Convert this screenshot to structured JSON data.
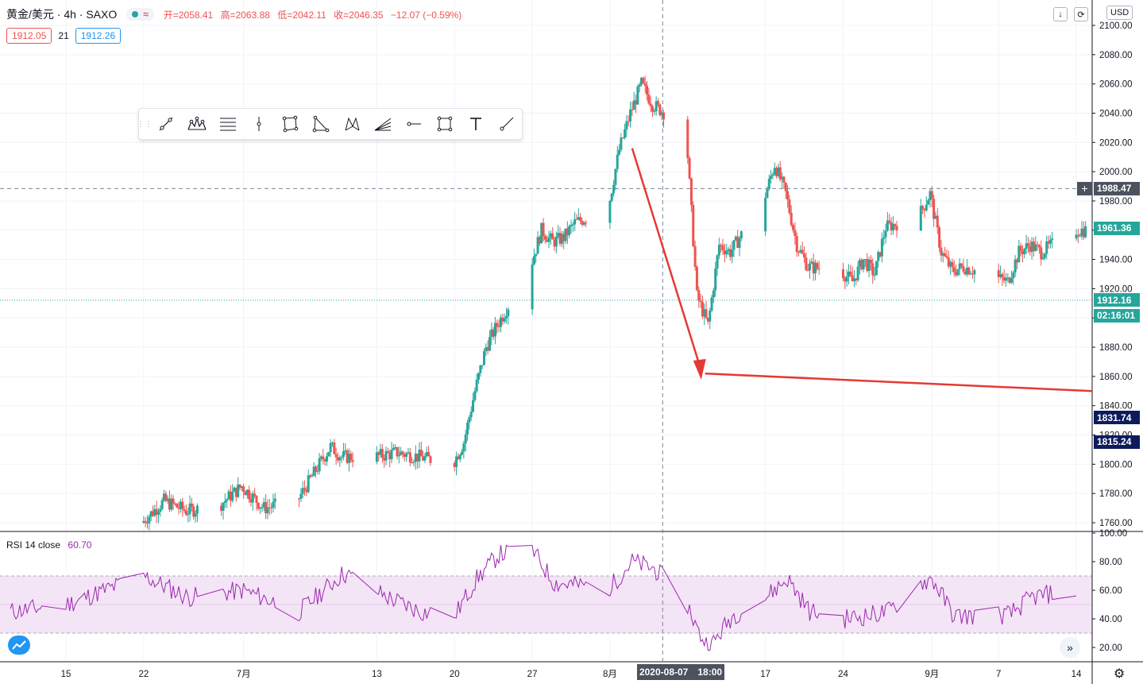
{
  "header": {
    "symbol": "黄金/美元",
    "interval": "4h",
    "exchange": "SAXO",
    "title_text": "黄金/美元 · 4h · SAXO",
    "approx_symbol": "≈",
    "open_label": "开=2058.41",
    "high_label": "高=2063.88",
    "low_label": "低=2042.11",
    "close_label": "收=2046.35",
    "change_label": "−12.07 (−0.59%)",
    "bid_value": "1912.05",
    "spread_value": "21",
    "ask_value": "1912.26"
  },
  "currency_label": "USD",
  "rsi_legend": {
    "label": "RSI 14 close",
    "value": "60.70"
  },
  "crosshair_time": {
    "date": "2020-08-07",
    "time": "18:00"
  },
  "price_tags": {
    "crosshair": "1988.47",
    "last_price": "1961.36",
    "bid_line": "1912.16",
    "countdown": "02:16:01",
    "tag_blue_1": "1831.74",
    "tag_blue_2": "1815.24"
  },
  "colors": {
    "up": "#26a69a",
    "down": "#ef5350",
    "rsi_line": "#9c27b0",
    "rsi_band": "#f3e5f5",
    "annotation": "#e53935",
    "dark_tag": "#131722",
    "navy_tag": "#0d1b5c",
    "teal_tag": "#26a69a"
  },
  "drawing_tools": [
    "trend-line-icon",
    "pattern-icon",
    "fib-retracement-icon",
    "vertical-line-icon",
    "polygon-icon",
    "triangle-icon",
    "xabcd-icon",
    "fib-fan-icon",
    "horizontal-ray-icon",
    "rectangle-icon",
    "text-icon",
    "ray-icon"
  ],
  "chart_data": [
    {
      "type": "candlestick",
      "title": "黄金/美元 · 4h · SAXO",
      "ylabel": "USD",
      "ylim": [
        1750,
        2105
      ],
      "y_ticks": [
        "1760.00",
        "1780.00",
        "1800.00",
        "1820.00",
        "1840.00",
        "1860.00",
        "1880.00",
        "1900.00",
        "1920.00",
        "1940.00",
        "1960.00",
        "1980.00",
        "2000.00",
        "2020.00",
        "2040.00",
        "2060.00",
        "2080.00",
        "2100.00"
      ],
      "x_ticks": [
        "15",
        "22",
        "7月",
        "13",
        "20",
        "27",
        "8月",
        "17",
        "24",
        "9月",
        "7",
        "14"
      ],
      "key_levels": {
        "crosshair_price": 1988.47,
        "last_price": 1961.36,
        "bid_line": 1912.16
      },
      "series": [
        {
          "points_date_close": [
            [
              "2020-06-22",
              1760
            ],
            [
              "2020-06-24",
              1775
            ],
            [
              "2020-06-26",
              1768
            ],
            [
              "2020-06-29",
              1772
            ],
            [
              "2020-07-01",
              1785
            ],
            [
              "2020-07-03",
              1770
            ],
            [
              "2020-07-06",
              1775
            ],
            [
              "2020-07-08",
              1800
            ],
            [
              "2020-07-09",
              1812
            ],
            [
              "2020-07-10",
              1805
            ],
            [
              "2020-07-13",
              1805
            ],
            [
              "2020-07-15",
              1808
            ],
            [
              "2020-07-17",
              1805
            ],
            [
              "2020-07-20",
              1800
            ],
            [
              "2020-07-21",
              1815
            ],
            [
              "2020-07-22",
              1850
            ],
            [
              "2020-07-23",
              1880
            ],
            [
              "2020-07-24",
              1895
            ],
            [
              "2020-07-27",
              1935
            ],
            [
              "2020-07-28",
              1960
            ],
            [
              "2020-07-29",
              1952
            ],
            [
              "2020-07-30",
              1955
            ],
            [
              "2020-07-31",
              1965
            ],
            [
              "2020-08-03",
              1975
            ],
            [
              "2020-08-04",
              2015
            ],
            [
              "2020-08-05",
              2040
            ],
            [
              "2020-08-06",
              2060
            ],
            [
              "2020-08-07",
              2046
            ],
            [
              "2020-08-10",
              2030
            ],
            [
              "2020-08-11",
              1915
            ],
            [
              "2020-08-12",
              1895
            ],
            [
              "2020-08-13",
              1950
            ],
            [
              "2020-08-14",
              1945
            ],
            [
              "2020-08-17",
              1980
            ],
            [
              "2020-08-18",
              2005
            ],
            [
              "2020-08-19",
              1985
            ],
            [
              "2020-08-20",
              1950
            ],
            [
              "2020-08-21",
              1935
            ],
            [
              "2020-08-24",
              1932
            ],
            [
              "2020-08-25",
              1925
            ],
            [
              "2020-08-26",
              1940
            ],
            [
              "2020-08-27",
              1930
            ],
            [
              "2020-08-28",
              1962
            ],
            [
              "2020-08-31",
              1970
            ],
            [
              "2020-09-01",
              1985
            ],
            [
              "2020-09-02",
              1945
            ],
            [
              "2020-09-03",
              1932
            ],
            [
              "2020-09-04",
              1935
            ],
            [
              "2020-09-08",
              1925
            ],
            [
              "2020-09-09",
              1945
            ],
            [
              "2020-09-10",
              1950
            ],
            [
              "2020-09-11",
              1945
            ],
            [
              "2020-09-14",
              1960
            ]
          ]
        }
      ]
    },
    {
      "type": "line",
      "title": "RSI 14 close",
      "ylim": [
        15,
        102
      ],
      "y_ticks": [
        "20.00",
        "40.00",
        "60.00",
        "80.00",
        "100.00"
      ],
      "bands": [
        30,
        70
      ],
      "series": [
        {
          "name": "RSI 14 close",
          "points_date_value": [
            [
              "2020-06-10",
              45
            ],
            [
              "2020-06-15",
              50
            ],
            [
              "2020-06-22",
              70
            ],
            [
              "2020-06-26",
              55
            ],
            [
              "2020-07-01",
              60
            ],
            [
              "2020-07-06",
              45
            ],
            [
              "2020-07-10",
              72
            ],
            [
              "2020-07-14",
              55
            ],
            [
              "2020-07-17",
              45
            ],
            [
              "2020-07-20",
              42
            ],
            [
              "2020-07-22",
              68
            ],
            [
              "2020-07-24",
              85
            ],
            [
              "2020-07-27",
              88
            ],
            [
              "2020-07-29",
              65
            ],
            [
              "2020-08-03",
              62
            ],
            [
              "2020-08-05",
              80
            ],
            [
              "2020-08-07",
              75
            ],
            [
              "2020-08-10",
              50
            ],
            [
              "2020-08-11",
              30
            ],
            [
              "2020-08-12",
              20
            ],
            [
              "2020-08-14",
              42
            ],
            [
              "2020-08-17",
              55
            ],
            [
              "2020-08-19",
              68
            ],
            [
              "2020-08-21",
              45
            ],
            [
              "2020-08-24",
              40
            ],
            [
              "2020-08-26",
              42
            ],
            [
              "2020-08-28",
              45
            ],
            [
              "2020-08-31",
              65
            ],
            [
              "2020-09-01",
              68
            ],
            [
              "2020-09-03",
              42
            ],
            [
              "2020-09-08",
              43
            ],
            [
              "2020-09-10",
              55
            ],
            [
              "2020-09-14",
              60.7
            ]
          ]
        }
      ]
    }
  ]
}
